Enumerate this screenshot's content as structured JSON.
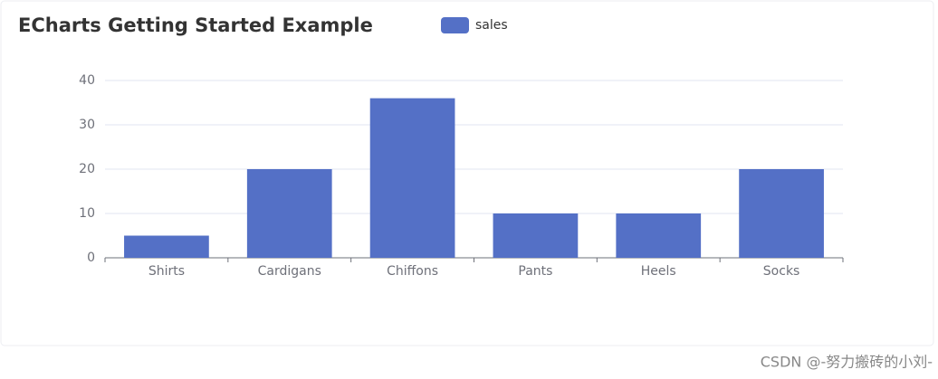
{
  "chart_data": {
    "type": "bar",
    "title": "ECharts Getting Started Example",
    "categories": [
      "Shirts",
      "Cardigans",
      "Chiffons",
      "Pants",
      "Heels",
      "Socks"
    ],
    "series": [
      {
        "name": "sales",
        "color": "#5470c6",
        "values": [
          5,
          20,
          36,
          10,
          10,
          20
        ]
      }
    ],
    "ylim": [
      0,
      40
    ],
    "yticks": [
      0,
      10,
      20,
      30,
      40
    ],
    "grid": true,
    "legend": "top"
  },
  "watermark": "CSDN @-努力搬砖的小刘-"
}
